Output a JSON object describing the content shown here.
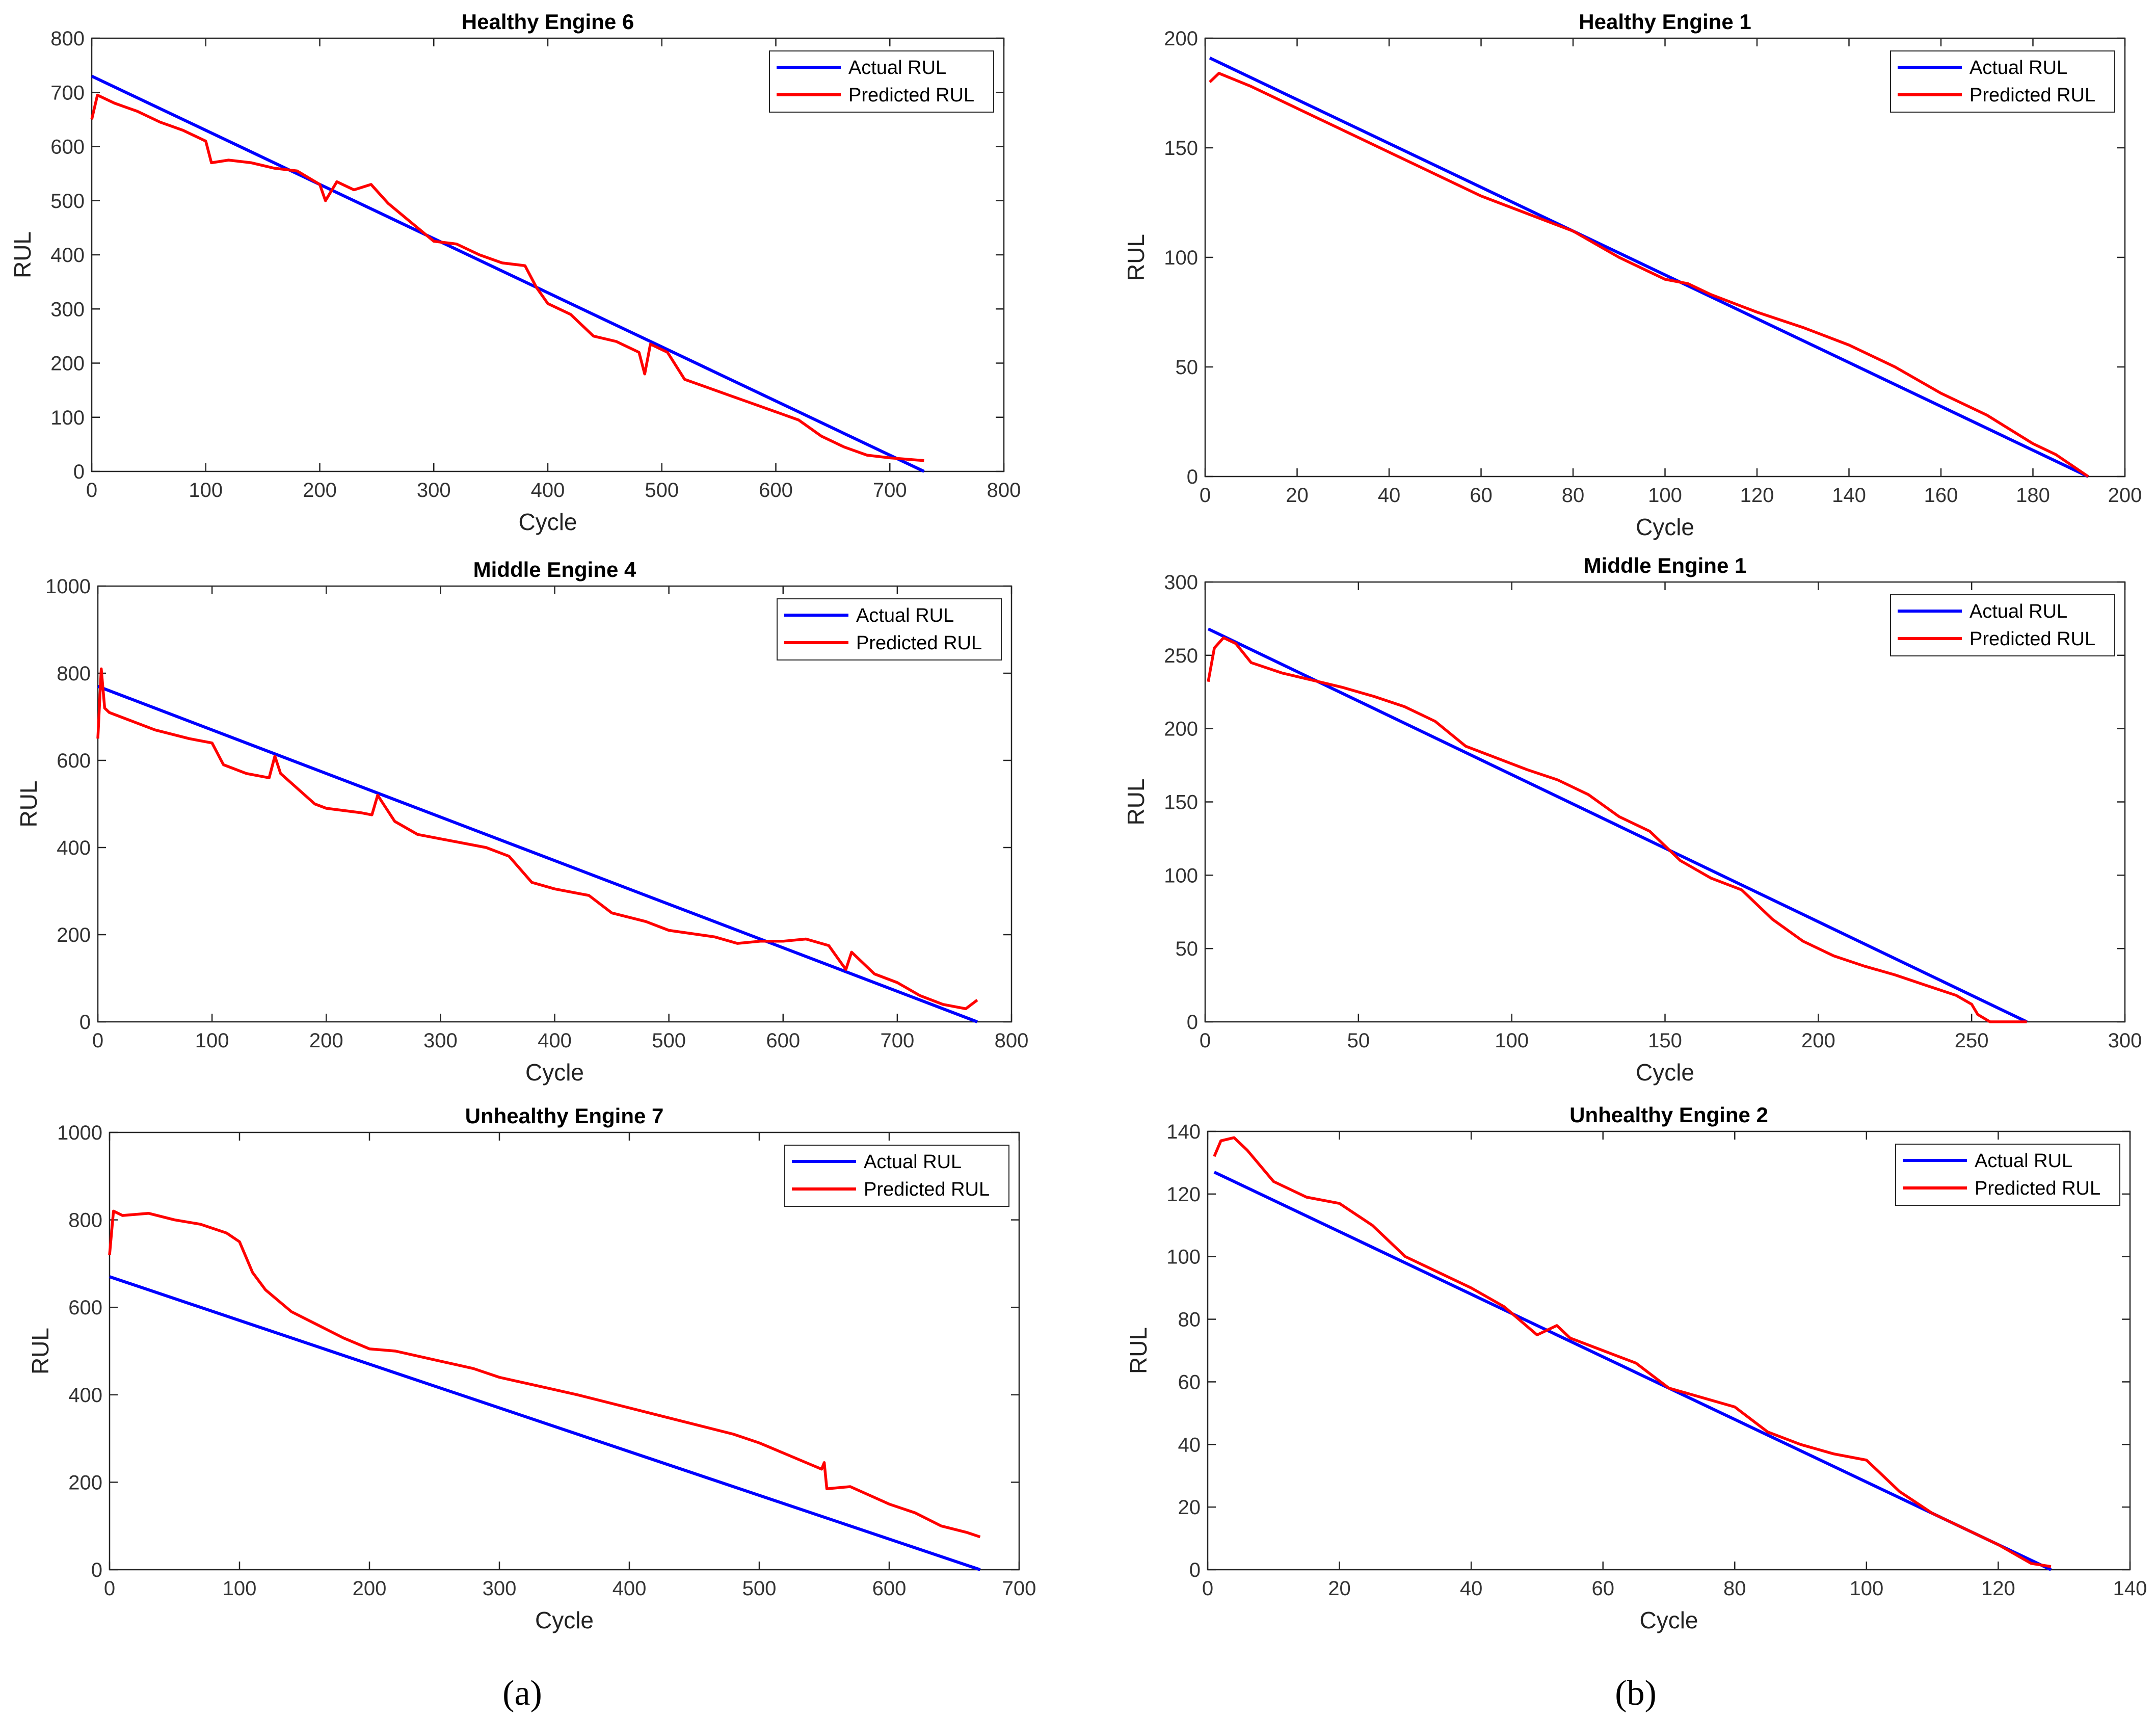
{
  "figure_labels": [
    "(a)",
    "(b)"
  ],
  "chart_data": [
    {
      "type": "line",
      "title": "Healthy Engine 6",
      "xlabel": "Cycle",
      "ylabel": "RUL",
      "xlim": [
        0,
        800
      ],
      "ylim": [
        0,
        800
      ],
      "xticks": [
        0,
        100,
        200,
        300,
        400,
        500,
        600,
        700,
        800
      ],
      "yticks": [
        0,
        100,
        200,
        300,
        400,
        500,
        600,
        700,
        800
      ],
      "legend": [
        "Actual RUL",
        "Predicted RUL"
      ],
      "series": [
        {
          "name": "Actual RUL",
          "color": "#0000ff",
          "x": [
            0,
            730
          ],
          "y": [
            730,
            0
          ]
        },
        {
          "name": "Predicted RUL",
          "color": "#ff0000",
          "x": [
            0,
            5,
            20,
            40,
            60,
            80,
            100,
            105,
            120,
            140,
            160,
            180,
            200,
            205,
            215,
            230,
            245,
            260,
            280,
            300,
            320,
            340,
            360,
            380,
            390,
            400,
            420,
            440,
            460,
            480,
            485,
            490,
            505,
            520,
            540,
            560,
            580,
            600,
            620,
            640,
            660,
            680,
            700,
            730
          ],
          "y": [
            650,
            695,
            680,
            665,
            645,
            630,
            610,
            570,
            575,
            570,
            560,
            555,
            530,
            500,
            535,
            520,
            530,
            495,
            460,
            425,
            420,
            400,
            385,
            380,
            340,
            310,
            290,
            250,
            240,
            220,
            180,
            235,
            220,
            170,
            155,
            140,
            125,
            110,
            95,
            65,
            45,
            30,
            25,
            20
          ]
        }
      ]
    },
    {
      "type": "line",
      "title": "Healthy Engine 1",
      "xlabel": "Cycle",
      "ylabel": "RUL",
      "xlim": [
        0,
        200
      ],
      "ylim": [
        0,
        200
      ],
      "xticks": [
        0,
        20,
        40,
        60,
        80,
        100,
        120,
        140,
        160,
        180,
        200
      ],
      "yticks": [
        0,
        50,
        100,
        150,
        200
      ],
      "legend": [
        "Actual RUL",
        "Predicted RUL"
      ],
      "series": [
        {
          "name": "Actual RUL",
          "color": "#0000ff",
          "x": [
            1,
            192
          ],
          "y": [
            191,
            0
          ]
        },
        {
          "name": "Predicted RUL",
          "color": "#ff0000",
          "x": [
            1,
            3,
            10,
            20,
            30,
            40,
            50,
            60,
            70,
            80,
            90,
            100,
            105,
            110,
            120,
            130,
            140,
            150,
            160,
            170,
            180,
            185,
            192
          ],
          "y": [
            180,
            184,
            178,
            168,
            158,
            148,
            138,
            128,
            120,
            112,
            100,
            90,
            88,
            83,
            75,
            68,
            60,
            50,
            38,
            28,
            15,
            10,
            0
          ]
        }
      ]
    },
    {
      "type": "line",
      "title": "Middle Engine 4",
      "xlabel": "Cycle",
      "ylabel": "RUL",
      "xlim": [
        0,
        800
      ],
      "ylim": [
        0,
        1000
      ],
      "xticks": [
        0,
        100,
        200,
        300,
        400,
        500,
        600,
        700,
        800
      ],
      "yticks": [
        0,
        200,
        400,
        600,
        800,
        1000
      ],
      "legend": [
        "Actual RUL",
        "Predicted RUL"
      ],
      "series": [
        {
          "name": "Actual RUL",
          "color": "#0000ff",
          "x": [
            0,
            770
          ],
          "y": [
            770,
            0
          ]
        },
        {
          "name": "Predicted RUL",
          "color": "#ff0000",
          "x": [
            0,
            3,
            6,
            10,
            30,
            50,
            80,
            100,
            110,
            130,
            150,
            155,
            160,
            190,
            200,
            230,
            240,
            245,
            260,
            280,
            300,
            340,
            360,
            380,
            400,
            430,
            450,
            480,
            500,
            540,
            560,
            580,
            600,
            620,
            640,
            655,
            660,
            680,
            700,
            720,
            740,
            760,
            770
          ],
          "y": [
            650,
            810,
            720,
            710,
            690,
            670,
            650,
            640,
            590,
            570,
            560,
            610,
            570,
            500,
            490,
            480,
            475,
            520,
            460,
            430,
            420,
            400,
            380,
            320,
            305,
            290,
            250,
            230,
            210,
            195,
            180,
            185,
            185,
            190,
            175,
            120,
            160,
            110,
            90,
            60,
            40,
            30,
            50
          ]
        }
      ]
    },
    {
      "type": "line",
      "title": "Middle Engine 1",
      "xlabel": "Cycle",
      "ylabel": "RUL",
      "xlim": [
        0,
        300
      ],
      "ylim": [
        0,
        300
      ],
      "xticks": [
        0,
        50,
        100,
        150,
        200,
        250,
        300
      ],
      "yticks": [
        0,
        50,
        100,
        150,
        200,
        250,
        300
      ],
      "legend": [
        "Actual RUL",
        "Predicted RUL"
      ],
      "series": [
        {
          "name": "Actual RUL",
          "color": "#0000ff",
          "x": [
            1,
            268
          ],
          "y": [
            268,
            0
          ]
        },
        {
          "name": "Predicted RUL",
          "color": "#ff0000",
          "x": [
            1,
            3,
            6,
            10,
            15,
            25,
            35,
            45,
            55,
            65,
            75,
            85,
            95,
            105,
            115,
            125,
            135,
            145,
            155,
            165,
            175,
            185,
            195,
            205,
            215,
            225,
            235,
            245,
            250,
            252,
            256,
            268
          ],
          "y": [
            232,
            255,
            262,
            258,
            245,
            238,
            233,
            228,
            222,
            215,
            205,
            188,
            180,
            172,
            165,
            155,
            140,
            130,
            110,
            98,
            90,
            70,
            55,
            45,
            38,
            32,
            25,
            18,
            12,
            5,
            0,
            0
          ]
        }
      ]
    },
    {
      "type": "line",
      "title": "Unhealthy Engine 7",
      "xlabel": "Cycle",
      "ylabel": "RUL",
      "xlim": [
        0,
        700
      ],
      "ylim": [
        0,
        1000
      ],
      "xticks": [
        0,
        100,
        200,
        300,
        400,
        500,
        600,
        700
      ],
      "yticks": [
        0,
        200,
        400,
        600,
        800,
        1000
      ],
      "legend": [
        "Actual RUL",
        "Predicted RUL"
      ],
      "series": [
        {
          "name": "Actual RUL",
          "color": "#0000ff",
          "x": [
            0,
            670
          ],
          "y": [
            670,
            0
          ]
        },
        {
          "name": "Predicted RUL",
          "color": "#ff0000",
          "x": [
            0,
            3,
            10,
            30,
            50,
            70,
            90,
            100,
            110,
            120,
            140,
            160,
            180,
            200,
            220,
            250,
            280,
            300,
            330,
            360,
            400,
            440,
            480,
            500,
            520,
            540,
            548,
            550,
            552,
            570,
            600,
            620,
            640,
            660,
            670
          ],
          "y": [
            720,
            820,
            810,
            815,
            800,
            790,
            770,
            750,
            680,
            640,
            590,
            560,
            530,
            505,
            500,
            480,
            460,
            440,
            420,
            400,
            370,
            340,
            310,
            290,
            265,
            240,
            230,
            245,
            185,
            190,
            150,
            130,
            100,
            85,
            75
          ]
        }
      ]
    },
    {
      "type": "line",
      "title": "Unhealthy Engine 2",
      "xlabel": "Cycle",
      "ylabel": "RUL",
      "xlim": [
        0,
        140
      ],
      "ylim": [
        0,
        140
      ],
      "xticks": [
        0,
        20,
        40,
        60,
        80,
        100,
        120,
        140
      ],
      "yticks": [
        0,
        20,
        40,
        60,
        80,
        100,
        120,
        140
      ],
      "legend": [
        "Actual RUL",
        "Predicted RUL"
      ],
      "series": [
        {
          "name": "Actual RUL",
          "color": "#0000ff",
          "x": [
            1,
            128
          ],
          "y": [
            127,
            0
          ]
        },
        {
          "name": "Predicted RUL",
          "color": "#ff0000",
          "x": [
            1,
            2,
            4,
            6,
            10,
            15,
            20,
            25,
            30,
            35,
            40,
            45,
            50,
            53,
            55,
            60,
            65,
            70,
            75,
            80,
            85,
            90,
            95,
            100,
            105,
            110,
            115,
            120,
            125,
            128
          ],
          "y": [
            132,
            137,
            138,
            134,
            124,
            119,
            117,
            110,
            100,
            95,
            90,
            84,
            75,
            78,
            74,
            70,
            66,
            58,
            55,
            52,
            44,
            40,
            37,
            35,
            25,
            18,
            13,
            8,
            2,
            1
          ]
        }
      ]
    }
  ]
}
